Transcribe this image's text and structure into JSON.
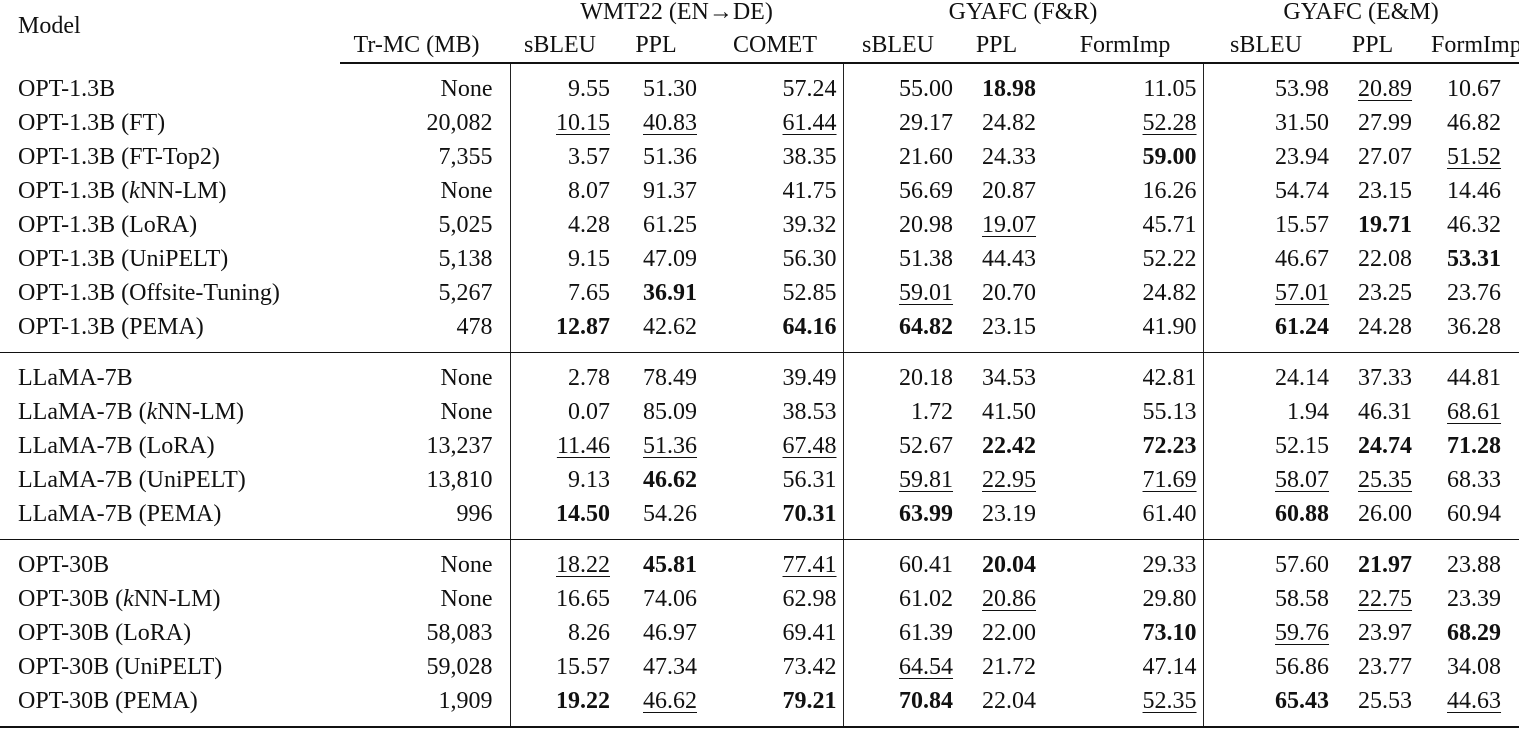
{
  "header": {
    "model": "Model",
    "trmc": "Tr-MC (MB)",
    "groups": [
      "WMT22 (EN→DE)",
      "GYAFC (F&R)",
      "GYAFC (E&M)"
    ],
    "subcols": [
      "sBLEU",
      "PPL",
      "COMET",
      "sBLEU",
      "PPL",
      "FormImp",
      "sBLEU",
      "PPL",
      "FormImp"
    ]
  },
  "sections": [
    {
      "rows": [
        {
          "model": "OPT-1.3B",
          "cells": [
            {
              "v": "None"
            },
            {
              "v": "9.55"
            },
            {
              "v": "51.30"
            },
            {
              "v": "57.24"
            },
            {
              "v": "55.00"
            },
            {
              "v": "18.98",
              "b": true
            },
            {
              "v": "11.05"
            },
            {
              "v": "53.98"
            },
            {
              "v": "20.89",
              "u": true
            },
            {
              "v": "10.67"
            }
          ]
        },
        {
          "model": "OPT-1.3B (FT)",
          "cells": [
            {
              "v": "20,082"
            },
            {
              "v": "10.15",
              "u": true
            },
            {
              "v": "40.83",
              "u": true
            },
            {
              "v": "61.44",
              "u": true
            },
            {
              "v": "29.17"
            },
            {
              "v": "24.82"
            },
            {
              "v": "52.28",
              "u": true
            },
            {
              "v": "31.50"
            },
            {
              "v": "27.99"
            },
            {
              "v": "46.82"
            }
          ]
        },
        {
          "model": "OPT-1.3B (FT-Top2)",
          "cells": [
            {
              "v": "7,355"
            },
            {
              "v": "3.57"
            },
            {
              "v": "51.36"
            },
            {
              "v": "38.35"
            },
            {
              "v": "21.60"
            },
            {
              "v": "24.33"
            },
            {
              "v": "59.00",
              "b": true
            },
            {
              "v": "23.94"
            },
            {
              "v": "27.07"
            },
            {
              "v": "51.52",
              "u": true
            }
          ]
        },
        {
          "model": "OPT-1.3B (kNN-LM)",
          "cells": [
            {
              "v": "None"
            },
            {
              "v": "8.07"
            },
            {
              "v": "91.37"
            },
            {
              "v": "41.75"
            },
            {
              "v": "56.69"
            },
            {
              "v": "20.87"
            },
            {
              "v": "16.26"
            },
            {
              "v": "54.74"
            },
            {
              "v": "23.15"
            },
            {
              "v": "14.46"
            }
          ]
        },
        {
          "model": "OPT-1.3B (LoRA)",
          "cells": [
            {
              "v": "5,025"
            },
            {
              "v": "4.28"
            },
            {
              "v": "61.25"
            },
            {
              "v": "39.32"
            },
            {
              "v": "20.98"
            },
            {
              "v": "19.07",
              "u": true
            },
            {
              "v": "45.71"
            },
            {
              "v": "15.57"
            },
            {
              "v": "19.71",
              "b": true
            },
            {
              "v": "46.32"
            }
          ]
        },
        {
          "model": "OPT-1.3B (UniPELT)",
          "cells": [
            {
              "v": "5,138"
            },
            {
              "v": "9.15"
            },
            {
              "v": "47.09"
            },
            {
              "v": "56.30"
            },
            {
              "v": "51.38"
            },
            {
              "v": "44.43"
            },
            {
              "v": "52.22"
            },
            {
              "v": "46.67"
            },
            {
              "v": "22.08"
            },
            {
              "v": "53.31",
              "b": true
            }
          ]
        },
        {
          "model": "OPT-1.3B (Offsite-Tuning)",
          "cells": [
            {
              "v": "5,267"
            },
            {
              "v": "7.65"
            },
            {
              "v": "36.91",
              "b": true
            },
            {
              "v": "52.85"
            },
            {
              "v": "59.01",
              "u": true
            },
            {
              "v": "20.70"
            },
            {
              "v": "24.82"
            },
            {
              "v": "57.01",
              "u": true
            },
            {
              "v": "23.25"
            },
            {
              "v": "23.76"
            }
          ]
        },
        {
          "model": "OPT-1.3B (PEMA)",
          "cells": [
            {
              "v": "478"
            },
            {
              "v": "12.87",
              "b": true
            },
            {
              "v": "42.62"
            },
            {
              "v": "64.16",
              "b": true
            },
            {
              "v": "64.82",
              "b": true
            },
            {
              "v": "23.15"
            },
            {
              "v": "41.90"
            },
            {
              "v": "61.24",
              "b": true
            },
            {
              "v": "24.28"
            },
            {
              "v": "36.28"
            }
          ]
        }
      ]
    },
    {
      "rows": [
        {
          "model": "LLaMA-7B",
          "cells": [
            {
              "v": "None"
            },
            {
              "v": "2.78"
            },
            {
              "v": "78.49"
            },
            {
              "v": "39.49"
            },
            {
              "v": "20.18"
            },
            {
              "v": "34.53"
            },
            {
              "v": "42.81"
            },
            {
              "v": "24.14"
            },
            {
              "v": "37.33"
            },
            {
              "v": "44.81"
            }
          ]
        },
        {
          "model": "LLaMA-7B (kNN-LM)",
          "cells": [
            {
              "v": "None"
            },
            {
              "v": "0.07"
            },
            {
              "v": "85.09"
            },
            {
              "v": "38.53"
            },
            {
              "v": "1.72"
            },
            {
              "v": "41.50"
            },
            {
              "v": "55.13"
            },
            {
              "v": "1.94"
            },
            {
              "v": "46.31"
            },
            {
              "v": "68.61",
              "u": true
            }
          ]
        },
        {
          "model": "LLaMA-7B (LoRA)",
          "cells": [
            {
              "v": "13,237"
            },
            {
              "v": "11.46",
              "u": true
            },
            {
              "v": "51.36",
              "u": true
            },
            {
              "v": "67.48",
              "u": true
            },
            {
              "v": "52.67"
            },
            {
              "v": "22.42",
              "b": true
            },
            {
              "v": "72.23",
              "b": true
            },
            {
              "v": "52.15"
            },
            {
              "v": "24.74",
              "b": true
            },
            {
              "v": "71.28",
              "b": true
            }
          ]
        },
        {
          "model": "LLaMA-7B (UniPELT)",
          "cells": [
            {
              "v": "13,810"
            },
            {
              "v": "9.13"
            },
            {
              "v": "46.62",
              "b": true
            },
            {
              "v": "56.31"
            },
            {
              "v": "59.81",
              "u": true
            },
            {
              "v": "22.95",
              "u": true
            },
            {
              "v": "71.69",
              "u": true
            },
            {
              "v": "58.07",
              "u": true
            },
            {
              "v": "25.35",
              "u": true
            },
            {
              "v": "68.33"
            }
          ]
        },
        {
          "model": "LLaMA-7B (PEMA)",
          "cells": [
            {
              "v": "996"
            },
            {
              "v": "14.50",
              "b": true
            },
            {
              "v": "54.26"
            },
            {
              "v": "70.31",
              "b": true
            },
            {
              "v": "63.99",
              "b": true
            },
            {
              "v": "23.19"
            },
            {
              "v": "61.40"
            },
            {
              "v": "60.88",
              "b": true
            },
            {
              "v": "26.00"
            },
            {
              "v": "60.94"
            }
          ]
        }
      ]
    },
    {
      "rows": [
        {
          "model": "OPT-30B",
          "cells": [
            {
              "v": "None"
            },
            {
              "v": "18.22",
              "u": true
            },
            {
              "v": "45.81",
              "b": true
            },
            {
              "v": "77.41",
              "u": true
            },
            {
              "v": "60.41"
            },
            {
              "v": "20.04",
              "b": true
            },
            {
              "v": "29.33"
            },
            {
              "v": "57.60"
            },
            {
              "v": "21.97",
              "b": true
            },
            {
              "v": "23.88"
            }
          ]
        },
        {
          "model": "OPT-30B (kNN-LM)",
          "cells": [
            {
              "v": "None"
            },
            {
              "v": "16.65"
            },
            {
              "v": "74.06"
            },
            {
              "v": "62.98"
            },
            {
              "v": "61.02"
            },
            {
              "v": "20.86",
              "u": true
            },
            {
              "v": "29.80"
            },
            {
              "v": "58.58"
            },
            {
              "v": "22.75",
              "u": true
            },
            {
              "v": "23.39"
            }
          ]
        },
        {
          "model": "OPT-30B (LoRA)",
          "cells": [
            {
              "v": "58,083"
            },
            {
              "v": "8.26"
            },
            {
              "v": "46.97"
            },
            {
              "v": "69.41"
            },
            {
              "v": "61.39"
            },
            {
              "v": "22.00"
            },
            {
              "v": "73.10",
              "b": true
            },
            {
              "v": "59.76",
              "u": true
            },
            {
              "v": "23.97"
            },
            {
              "v": "68.29",
              "b": true
            }
          ]
        },
        {
          "model": "OPT-30B (UniPELT)",
          "cells": [
            {
              "v": "59,028"
            },
            {
              "v": "15.57"
            },
            {
              "v": "47.34"
            },
            {
              "v": "73.42"
            },
            {
              "v": "64.54",
              "u": true
            },
            {
              "v": "21.72"
            },
            {
              "v": "47.14"
            },
            {
              "v": "56.86"
            },
            {
              "v": "23.77"
            },
            {
              "v": "34.08"
            }
          ]
        },
        {
          "model": "OPT-30B (PEMA)",
          "cells": [
            {
              "v": "1,909"
            },
            {
              "v": "19.22",
              "b": true
            },
            {
              "v": "46.62",
              "u": true
            },
            {
              "v": "79.21",
              "b": true
            },
            {
              "v": "70.84",
              "b": true
            },
            {
              "v": "22.04"
            },
            {
              "v": "52.35",
              "u": true
            },
            {
              "v": "65.43",
              "b": true
            },
            {
              "v": "25.53"
            },
            {
              "v": "44.63",
              "u": true
            }
          ]
        }
      ]
    }
  ]
}
